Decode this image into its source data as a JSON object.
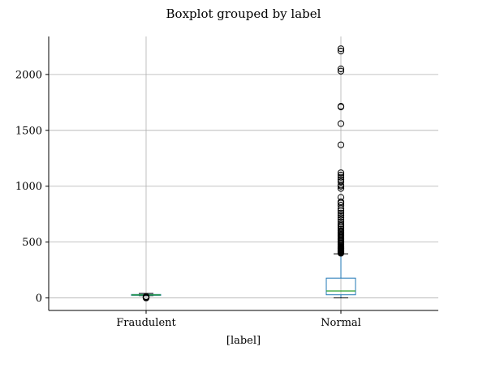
{
  "chart_data": {
    "type": "boxplot",
    "title": "Boxplot grouped by label",
    "xlabel": "[label]",
    "ylabel": "",
    "ylim": [
      -112,
      2340
    ],
    "yticks": [
      0,
      500,
      1000,
      1500,
      2000
    ],
    "grid": true,
    "categories": [
      "Fraudulent",
      "Normal"
    ],
    "boxes": [
      {
        "category": "Fraudulent",
        "whisker_low": 20,
        "q1": 23,
        "median": 27,
        "q3": 31,
        "whisker_high": 40,
        "outliers": [
          0,
          1,
          2,
          3,
          4,
          5,
          6,
          8,
          9,
          10,
          11,
          12
        ]
      },
      {
        "category": "Normal",
        "whisker_low": 0,
        "q1": 28,
        "median": 62,
        "q3": 177,
        "whisker_high": 395,
        "outliers": [
          400,
          405,
          410,
          415,
          420,
          425,
          430,
          435,
          440,
          445,
          450,
          455,
          460,
          470,
          480,
          490,
          500,
          510,
          520,
          530,
          540,
          550,
          560,
          570,
          580,
          590,
          600,
          615,
          630,
          645,
          660,
          680,
          700,
          720,
          740,
          760,
          780,
          800,
          830,
          850,
          860,
          900,
          980,
          1000,
          1010,
          1040,
          1060,
          1080,
          1100,
          1120,
          1370,
          1560,
          1710,
          1715,
          2030,
          2050,
          2210,
          2230
        ]
      }
    ],
    "colors": {
      "box": "#1f77b4",
      "median": "#2ca02c",
      "whisker": "#1f77b4",
      "cap": "#000000",
      "outlier": "#000000",
      "grid": "#b0b0b0"
    }
  }
}
